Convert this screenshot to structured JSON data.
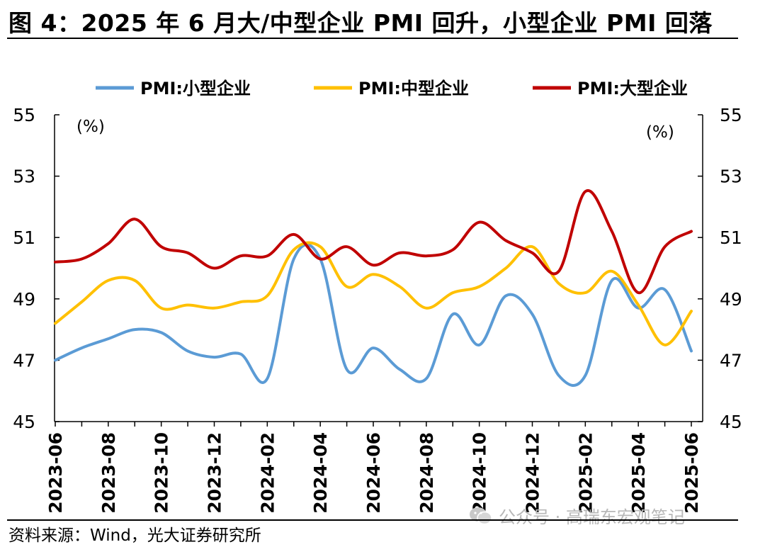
{
  "title": "图 4：2025 年 6 月大/中型企业 PMI 回升，小型企业 PMI 回落",
  "source": "资料来源：Wind，光大证券研究所",
  "watermark": "公众号 · 高瑞东宏观笔记",
  "chart_data": {
    "type": "line",
    "unit_left": "(%)",
    "unit_right": "(%)",
    "ylim": [
      45,
      55
    ],
    "yticks": [
      45,
      47,
      49,
      51,
      53,
      55
    ],
    "ytick_labels": [
      "45",
      "47",
      "49",
      "51",
      "53",
      "55"
    ],
    "legend_position": "top",
    "x": [
      "2023-06",
      "2023-07",
      "2023-08",
      "2023-09",
      "2023-10",
      "2023-11",
      "2023-12",
      "2024-01",
      "2024-02",
      "2024-03",
      "2024-04",
      "2024-05",
      "2024-06",
      "2024-07",
      "2024-08",
      "2024-09",
      "2024-10",
      "2024-11",
      "2024-12",
      "2025-01",
      "2025-02",
      "2025-03",
      "2025-04",
      "2025-05",
      "2025-06"
    ],
    "xtick_labels": [
      "2023-06",
      "2023-08",
      "2023-10",
      "2023-12",
      "2024-02",
      "2024-04",
      "2024-06",
      "2024-08",
      "2024-10",
      "2024-12",
      "2025-02",
      "2025-04",
      "2025-06"
    ],
    "series": [
      {
        "name": "PMI:小型企业",
        "color": "#5B9BD5",
        "values": [
          47.0,
          47.4,
          47.7,
          48.0,
          47.9,
          47.3,
          47.1,
          47.2,
          46.4,
          50.3,
          50.3,
          46.7,
          47.4,
          46.7,
          46.4,
          48.5,
          47.5,
          49.1,
          48.5,
          46.5,
          46.5,
          49.6,
          48.7,
          49.3,
          47.3
        ]
      },
      {
        "name": "PMI:中型企业",
        "color": "#FFC000",
        "values": [
          48.2,
          48.9,
          49.6,
          49.6,
          48.7,
          48.8,
          48.7,
          48.9,
          49.1,
          50.6,
          50.7,
          49.4,
          49.8,
          49.4,
          48.7,
          49.2,
          49.4,
          50.0,
          50.7,
          49.5,
          49.2,
          49.9,
          48.8,
          47.5,
          48.6
        ]
      },
      {
        "name": "PMI:大型企业",
        "color": "#C00000",
        "values": [
          50.2,
          50.3,
          50.8,
          51.6,
          50.7,
          50.5,
          50.0,
          50.4,
          50.4,
          51.1,
          50.3,
          50.7,
          50.1,
          50.5,
          50.4,
          50.6,
          51.5,
          50.9,
          50.5,
          49.9,
          52.5,
          51.2,
          49.2,
          50.7,
          51.2
        ]
      }
    ]
  }
}
